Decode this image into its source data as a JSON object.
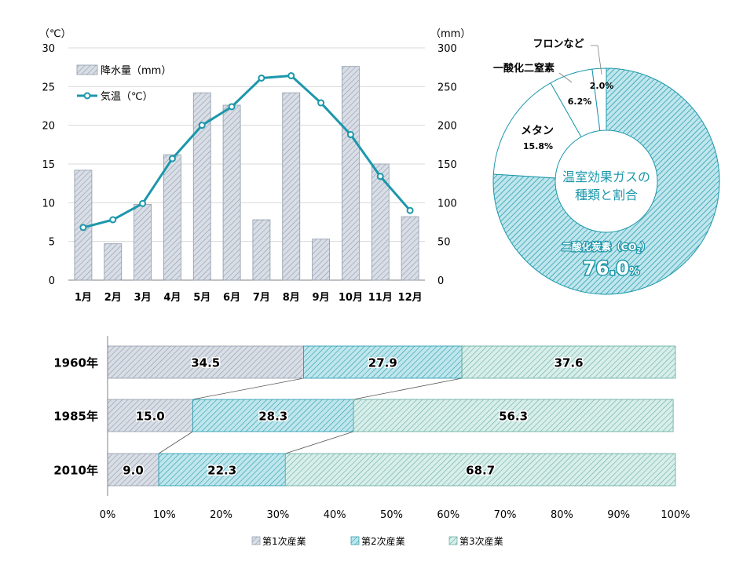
{
  "colors": {
    "teal": "#1C97AB",
    "teal_light": "#BFE6EC",
    "gray_bar": "#D9DEE6",
    "gray_stroke": "#8E9AAA",
    "green_light": "#D7EEEA",
    "green_stroke": "#5FA89C",
    "axis": "#808080",
    "grid": "#D9D9D9",
    "text": "#000000"
  },
  "chart_data": [
    {
      "id": "climate",
      "type": "bar+line",
      "left_axis_unit": "（℃）",
      "right_axis_unit": "（mm）",
      "left_ticks": [
        "0",
        "5",
        "10",
        "15",
        "20",
        "25",
        "30"
      ],
      "right_ticks": [
        "0",
        "50",
        "100",
        "150",
        "200",
        "250",
        "300"
      ],
      "ylim_left": [
        0,
        30
      ],
      "ylim_right": [
        0,
        300
      ],
      "categories": [
        "1月",
        "2月",
        "3月",
        "4月",
        "5月",
        "6月",
        "7月",
        "8月",
        "9月",
        "10月",
        "11月",
        "12月"
      ],
      "series": [
        {
          "name": "降水量（mm）",
          "kind": "bar",
          "axis": "right",
          "values": [
            142,
            47,
            98,
            162,
            242,
            226,
            78,
            242,
            53,
            276,
            150,
            82
          ]
        },
        {
          "name": "気温（℃）",
          "kind": "line",
          "axis": "left",
          "values": [
            6.8,
            7.8,
            9.9,
            15.7,
            20.0,
            22.4,
            26.1,
            26.4,
            22.9,
            18.8,
            13.4,
            9.0
          ]
        }
      ],
      "legend": [
        "降水量（mm）",
        "気温（℃）"
      ],
      "legend_position": "top-left"
    },
    {
      "id": "ghg",
      "type": "pie",
      "center_label": [
        "温室効果ガスの",
        "種類と割合"
      ],
      "slices": [
        {
          "name": "二酸化炭素（CO",
          "sub": "2",
          "suffix": "）",
          "value": 76.0,
          "value_text": "76.0",
          "unit": "%"
        },
        {
          "name": "メタン",
          "value": 15.8,
          "value_text": "15.8%"
        },
        {
          "name": "一酸化二窒素",
          "value": 6.2,
          "value_text": "6.2%"
        },
        {
          "name": "フロンなど",
          "value": 2.0,
          "value_text": "2.0%"
        }
      ]
    },
    {
      "id": "industry",
      "type": "bar",
      "orientation": "horizontal-stacked-100",
      "categories": [
        "1960年",
        "1985年",
        "2010年"
      ],
      "series": [
        {
          "name": "第1次産業",
          "values": [
            34.5,
            15.0,
            9.0
          ],
          "labels": [
            "34.5",
            "15.0",
            "9.0"
          ]
        },
        {
          "name": "第2次産業",
          "values": [
            27.9,
            28.3,
            22.3
          ],
          "labels": [
            "27.9",
            "28.3",
            "22.3"
          ]
        },
        {
          "name": "第3次産業",
          "values": [
            37.6,
            56.3,
            68.7
          ],
          "labels": [
            "37.6",
            "56.3",
            "68.7"
          ]
        }
      ],
      "x_ticks": [
        "0%",
        "10%",
        "20%",
        "30%",
        "40%",
        "50%",
        "60%",
        "70%",
        "80%",
        "90%",
        "100%"
      ],
      "xlim": [
        0,
        100
      ],
      "legend_position": "bottom"
    }
  ]
}
